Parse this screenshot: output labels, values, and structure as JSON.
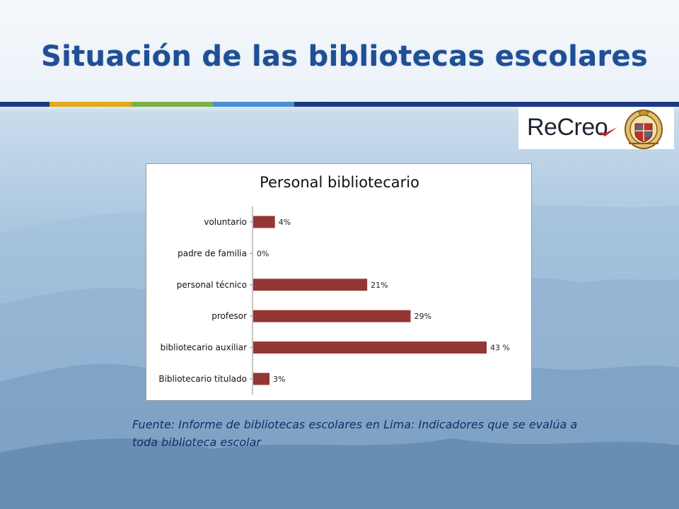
{
  "slide": {
    "title": "Situación de las bibliotecas escolares",
    "source_note": "Fuente: Informe de bibliotecas escolares  en Lima: Indicadores que se evalúa a toda biblioteca escolar"
  },
  "logo": {
    "text": "ReCreo",
    "seal_label": "university-seal"
  },
  "colors": {
    "title": "#1f4f94",
    "rule_dark": "#1d3a86",
    "rule_segments": [
      "#e1a91c",
      "#7cb043",
      "#4a8fcf"
    ],
    "bar": "#943634",
    "source_text": "#1c2a6b"
  },
  "chart_data": {
    "type": "bar",
    "orientation": "horizontal",
    "title": "Personal bibliotecario",
    "categories": [
      "voluntario",
      "padre de familia",
      "personal técnico",
      "profesor",
      "bibliotecario auxiliar",
      "Bibliotecario titulado"
    ],
    "values": [
      4,
      0,
      21,
      29,
      43,
      3
    ],
    "data_labels": [
      "4%",
      "0%",
      "21%",
      "29%",
      "43 %",
      "3%"
    ],
    "unit": "%",
    "xlim": [
      0,
      43
    ],
    "grid": false,
    "legend": "none"
  }
}
